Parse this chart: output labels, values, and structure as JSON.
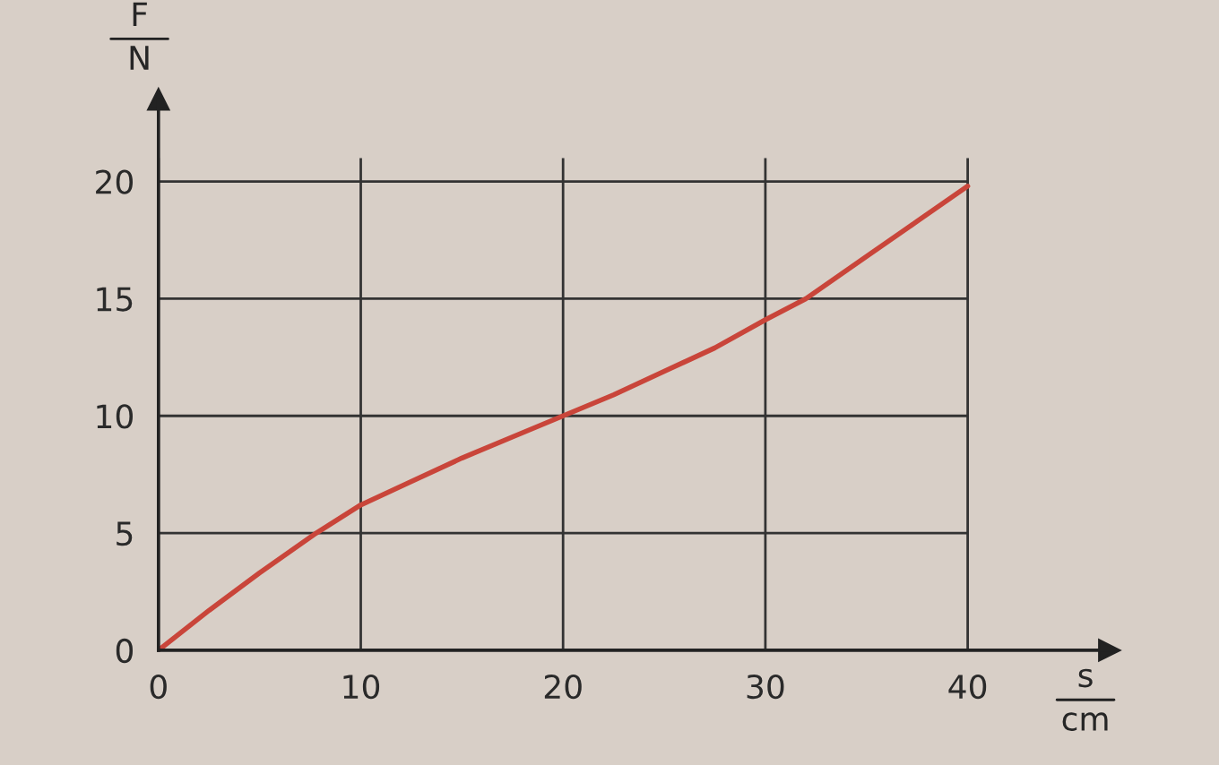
{
  "chart_data": {
    "type": "line",
    "xlabel": "s\ncm",
    "ylabel": "F\nN",
    "x": [
      0,
      2.5,
      5,
      7.8,
      10,
      12.5,
      15,
      17.5,
      20,
      22.5,
      25,
      27.5,
      30,
      32,
      35,
      37.5,
      40
    ],
    "series": [
      {
        "color": "#c9453a",
        "values": [
          0,
          1.7,
          3.3,
          5,
          6.2,
          7.2,
          8.2,
          9.1,
          10,
          10.9,
          11.9,
          12.9,
          14.1,
          15,
          16.8,
          18.3,
          19.8
        ]
      }
    ],
    "xlim": [
      0,
      47
    ],
    "ylim": [
      0,
      23.5
    ],
    "xticks": [
      0,
      10,
      20,
      30,
      40
    ],
    "yticks": [
      0,
      5,
      10,
      15,
      20
    ],
    "grid": true,
    "line_style": "solid",
    "marker": "none"
  }
}
